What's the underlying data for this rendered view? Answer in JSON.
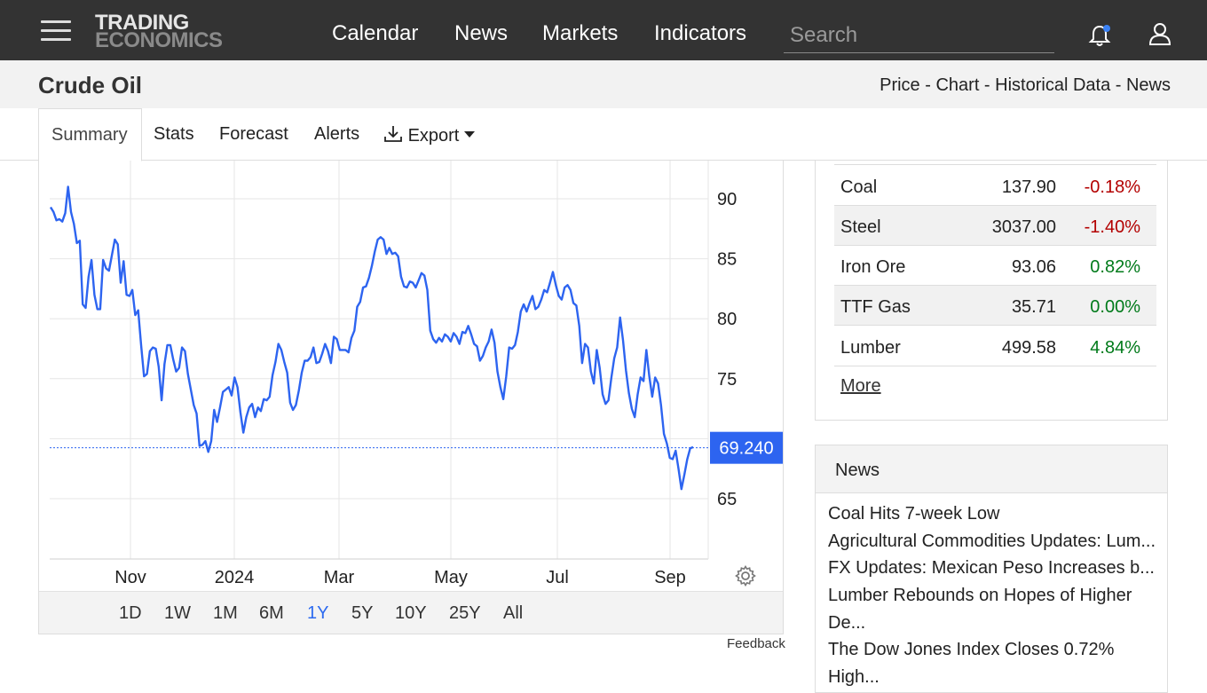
{
  "header": {
    "logo_line1": "TRADING",
    "logo_line2": "ECONOMICS",
    "nav": [
      "Calendar",
      "News",
      "Markets",
      "Indicators"
    ],
    "search_placeholder": "Search"
  },
  "page": {
    "title": "Crude Oil",
    "breadcrumbs": [
      "Price",
      "Chart",
      "Historical Data",
      "News"
    ],
    "breadcrumb_separator": " - "
  },
  "tabs": {
    "items": [
      "Summary",
      "Stats",
      "Forecast",
      "Alerts"
    ],
    "export_label": "Export",
    "active": "Summary"
  },
  "chart_data": {
    "type": "line",
    "series": [
      {
        "values": [
          89.3,
          88.9,
          88.2,
          88.3,
          88.1,
          88.8,
          91.0,
          88.9,
          87.9,
          86.3,
          86.5,
          81.2,
          80.9,
          83.5,
          84.9,
          82.0,
          80.8,
          80.8,
          84.9,
          84.2,
          84.0,
          85.3,
          86.6,
          86.2,
          83.0,
          84.8,
          82.0,
          81.9,
          82.4,
          80.3,
          80.7,
          77.8,
          75.2,
          75.4,
          77.3,
          77.6,
          77.5,
          76.0,
          73.2,
          76.2,
          77.8,
          77.8,
          76.6,
          75.6,
          75.9,
          77.6,
          77.3,
          75.4,
          74.1,
          72.8,
          72.1,
          69.4,
          69.5,
          69.8,
          68.9,
          69.8,
          72.4,
          71.4,
          72.6,
          73.9,
          74.1,
          74.3,
          73.6,
          75.1,
          74.3,
          72.2,
          70.5,
          71.8,
          72.6,
          72.9,
          71.8,
          72.6,
          72.3,
          73.3,
          73.2,
          73.5,
          75.3,
          76.4,
          77.9,
          77.4,
          76.4,
          75.5,
          73.0,
          72.4,
          72.8,
          74.0,
          75.5,
          76.5,
          76.5,
          76.8,
          77.6,
          76.3,
          76.4,
          77.1,
          77.9,
          77.3,
          76.3,
          78.5,
          78.3,
          77.4,
          77.4,
          77.4,
          77.2,
          78.4,
          79.0,
          81.0,
          81.4,
          82.6,
          82.7,
          83.4,
          84.4,
          85.6,
          86.6,
          86.8,
          86.6,
          85.4,
          85.9,
          85.4,
          85.5,
          85.2,
          83.5,
          82.7,
          82.6,
          83.1,
          83.0,
          82.6,
          83.2,
          83.8,
          83.6,
          82.4,
          79.0,
          78.3,
          78.0,
          78.4,
          78.1,
          78.7,
          78.5,
          78.1,
          78.8,
          78.5,
          77.9,
          78.9,
          78.8,
          79.4,
          78.7,
          77.9,
          77.7,
          76.5,
          76.9,
          77.6,
          78.1,
          79.1,
          78.0,
          75.6,
          74.3,
          73.3,
          75.2,
          77.6,
          77.5,
          77.8,
          78.9,
          80.6,
          81.2,
          80.6,
          81.3,
          81.9,
          80.8,
          81.0,
          81.6,
          82.4,
          82.2,
          83.0,
          83.9,
          82.8,
          81.9,
          81.6,
          82.6,
          82.8,
          82.4,
          81.3,
          81.1,
          79.4,
          76.3,
          77.9,
          77.6,
          75.6,
          74.6,
          77.4,
          75.9,
          73.7,
          72.9,
          73.2,
          75.1,
          76.7,
          77.6,
          80.1,
          78.2,
          75.7,
          73.8,
          72.5,
          71.8,
          73.7,
          75.1,
          74.8,
          77.4,
          75.2,
          73.5,
          75.1,
          74.6,
          72.8,
          70.4,
          69.6,
          68.4,
          68.3,
          69.0,
          67.5,
          65.8,
          67.0,
          68.3,
          69.2,
          69.3
        ],
        "line_color": "#2d64f0"
      }
    ],
    "x_labels": [
      "Nov",
      "2024",
      "Mar",
      "May",
      "Jul",
      "Sep"
    ],
    "y_ticks": [
      65,
      70,
      75,
      80,
      85,
      90
    ],
    "ylim": [
      60,
      92
    ],
    "last_value_label": "69.240",
    "last_value": 69.24,
    "grid": true,
    "accent_color": "#2d64f0"
  },
  "ranges": {
    "items": [
      "1D",
      "1W",
      "1M",
      "6M",
      "1Y",
      "5Y",
      "10Y",
      "25Y",
      "All"
    ],
    "active": "1Y"
  },
  "feedback_label": "Feedback",
  "commodities": {
    "rows": [
      {
        "name": "Coal",
        "price": "137.90",
        "change": "-0.18%",
        "dir": "neg"
      },
      {
        "name": "Steel",
        "price": "3037.00",
        "change": "-1.40%",
        "dir": "neg"
      },
      {
        "name": "Iron Ore",
        "price": "93.06",
        "change": "0.82%",
        "dir": "pos"
      },
      {
        "name": "TTF Gas",
        "price": "35.71",
        "change": "0.00%",
        "dir": "pos"
      },
      {
        "name": "Lumber",
        "price": "499.58",
        "change": "4.84%",
        "dir": "pos"
      }
    ],
    "more_label": "More"
  },
  "news": {
    "title": "News",
    "items": [
      "Coal Hits 7-week Low",
      "Agricultural Commodities Updates: Lum...",
      "FX Updates: Mexican Peso Increases b...",
      "Lumber Rebounds on Hopes of Higher De...",
      "The Dow Jones Index Closes 0.72% High..."
    ]
  },
  "colors": {
    "topbar_bg": "#333333",
    "negative": "#b30000",
    "positive": "#007a1a",
    "active_range": "#2d6bf0"
  }
}
